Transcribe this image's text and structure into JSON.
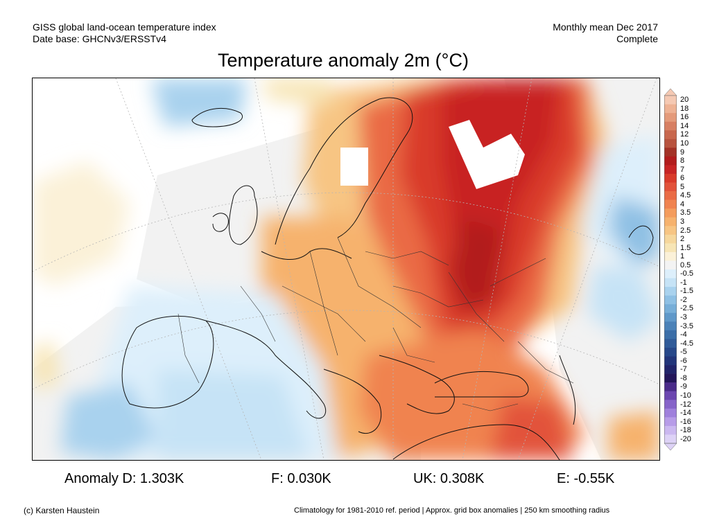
{
  "header": {
    "left_line1": "GISS global land-ocean temperature index",
    "left_line2": "Date base: GHCNv3/ERSSTv4",
    "right_line1": "Monthly mean Dec 2017",
    "right_line2": "Complete"
  },
  "title": "Temperature anomaly 2m (°C)",
  "colorbar": {
    "labels": [
      "20",
      "18",
      "16",
      "14",
      "12",
      "10",
      "9",
      "8",
      "7",
      "6",
      "5",
      "4.5",
      "4",
      "3.5",
      "3",
      "2.5",
      "2",
      "1.5",
      "1",
      "0.5",
      "-0.5",
      "-1",
      "-1.5",
      "-2",
      "-2.5",
      "-3",
      "-3.5",
      "-4",
      "-4.5",
      "-5",
      "-6",
      "-7",
      "-8",
      "-9",
      "-10",
      "-12",
      "-14",
      "-16",
      "-18",
      "-20"
    ],
    "colors": [
      "#f5c9b3",
      "#eeb294",
      "#e49a7a",
      "#d77f62",
      "#c8674d",
      "#b8533e",
      "#a33226",
      "#b21c1c",
      "#c82424",
      "#d93a2a",
      "#e2523a",
      "#ea6b45",
      "#f0834f",
      "#f49c5c",
      "#f6b26d",
      "#f7c583",
      "#f6d79c",
      "#f7e5b5",
      "#fbf1d8",
      "#f3f3f3",
      "#ddeffb",
      "#c6e3f6",
      "#a9d2ee",
      "#8ec0e4",
      "#77aed8",
      "#5f98c9",
      "#4b82b8",
      "#3b6ea8",
      "#305b99",
      "#27488a",
      "#22357a",
      "#21246a",
      "#23165a",
      "#4a2b8a",
      "#6b46b0",
      "#8663c9",
      "#9f80dc",
      "#b79ce8",
      "#cbb8f0",
      "#ddd2f6"
    ]
  },
  "stats": {
    "d": "Anomaly D: 1.303K",
    "f": "F: 0.030K",
    "uk": "UK: 0.308K",
    "e": "E: -0.55K"
  },
  "footer": {
    "copyright": "(c) Karsten Haustein",
    "note": "Climatology for 1981-2010 ref. period | Approx. grid box anomalies | 250 km smoothing radius"
  }
}
